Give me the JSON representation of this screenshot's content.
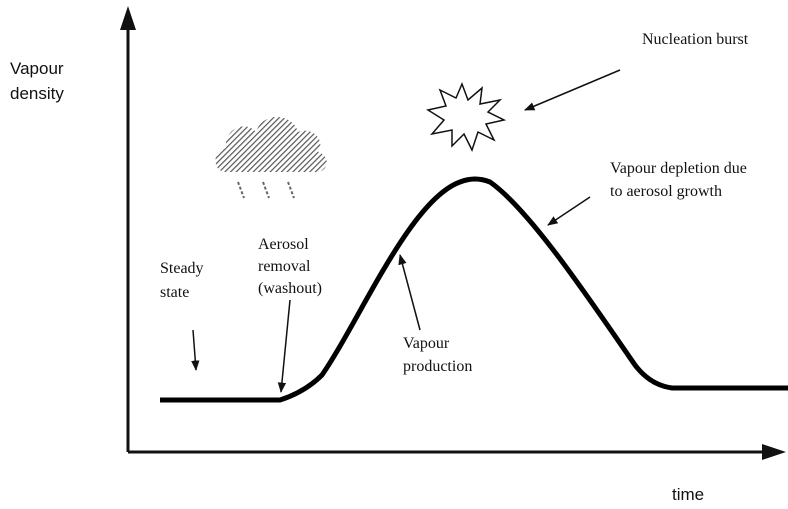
{
  "axes": {
    "y_label": [
      "Vapour",
      "density"
    ],
    "x_label": "time"
  },
  "annotations": {
    "nucleation": "Nucleation burst",
    "depletion": [
      "Vapour depletion due",
      "to aerosol growth"
    ],
    "removal": [
      "Aerosol",
      "removal",
      "(washout)"
    ],
    "steady": [
      "Steady",
      "state"
    ],
    "production": [
      "Vapour",
      "production"
    ]
  }
}
